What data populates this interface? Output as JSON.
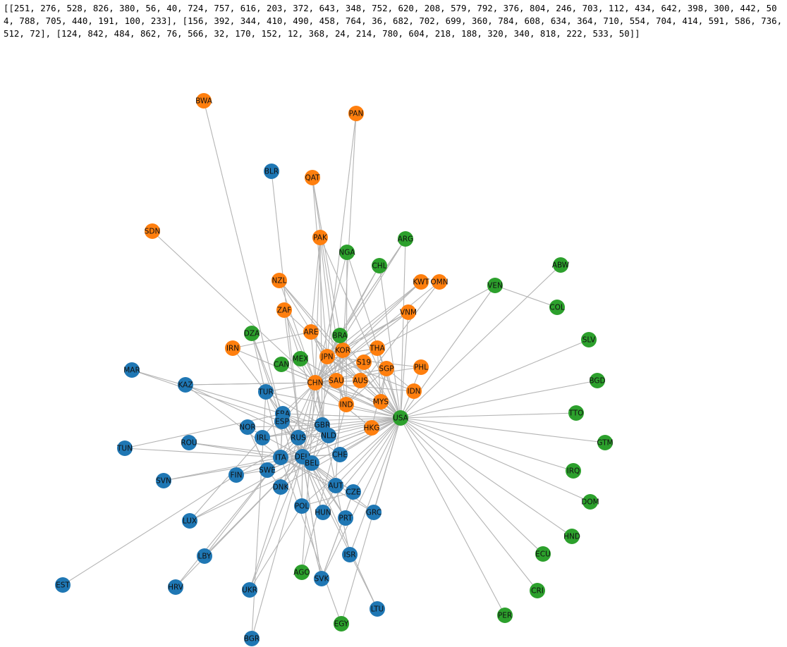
{
  "output": {
    "text": "[[251, 276, 528, 826, 380, 56, 40, 724, 757, 616, 203, 372, 643, 348, 752, 620, 208, 579, 792, 376, 804, 246, 703, 112, 434, 642, 398, 300, 442, 504, 788, 705, 440, 191, 100, 233], [156, 392, 344, 410, 490, 458, 764, 36, 682, 702, 699, 360, 784, 608, 634, 364, 710, 554, 704, 414, 591, 586, 736, 512, 72], [124, 842, 484, 862, 76, 566, 32, 170, 152, 12, 368, 24, 214, 780, 604, 218, 188, 320, 340, 818, 222, 533, 50]]"
  },
  "colors": {
    "blue": "#1f77b4",
    "orange": "#ff7f0e",
    "green": "#2ca02c",
    "edge": "#b4b4b4"
  },
  "graph": {
    "nodes": [
      {
        "id": "BWA",
        "group": "orange"
      },
      {
        "id": "PAN",
        "group": "orange"
      },
      {
        "id": "QAT",
        "group": "orange"
      },
      {
        "id": "SDN",
        "group": "orange"
      },
      {
        "id": "PAK",
        "group": "orange"
      },
      {
        "id": "NZL",
        "group": "orange"
      },
      {
        "id": "KWT",
        "group": "orange"
      },
      {
        "id": "OMN",
        "group": "orange"
      },
      {
        "id": "ZAF",
        "group": "orange"
      },
      {
        "id": "VNM",
        "group": "orange"
      },
      {
        "id": "ARE",
        "group": "orange"
      },
      {
        "id": "IRN",
        "group": "orange"
      },
      {
        "id": "KOR",
        "group": "orange"
      },
      {
        "id": "THA",
        "group": "orange"
      },
      {
        "id": "JPN",
        "group": "orange"
      },
      {
        "id": "S19",
        "group": "orange"
      },
      {
        "id": "SGP",
        "group": "orange"
      },
      {
        "id": "PHL",
        "group": "orange"
      },
      {
        "id": "CHN",
        "group": "orange"
      },
      {
        "id": "SAU",
        "group": "orange"
      },
      {
        "id": "AUS",
        "group": "orange"
      },
      {
        "id": "IDN",
        "group": "orange"
      },
      {
        "id": "MYS",
        "group": "orange"
      },
      {
        "id": "IND",
        "group": "orange"
      },
      {
        "id": "HKG",
        "group": "orange"
      },
      {
        "id": "BLR",
        "group": "blue"
      },
      {
        "id": "MAR",
        "group": "blue"
      },
      {
        "id": "KAZ",
        "group": "blue"
      },
      {
        "id": "TUR",
        "group": "blue"
      },
      {
        "id": "FRA",
        "group": "blue"
      },
      {
        "id": "ESP",
        "group": "blue"
      },
      {
        "id": "NOR",
        "group": "blue"
      },
      {
        "id": "GBR",
        "group": "blue"
      },
      {
        "id": "NLD",
        "group": "blue"
      },
      {
        "id": "IRL",
        "group": "blue"
      },
      {
        "id": "RUS",
        "group": "blue"
      },
      {
        "id": "ROU",
        "group": "blue"
      },
      {
        "id": "TUN",
        "group": "blue"
      },
      {
        "id": "CHE",
        "group": "blue"
      },
      {
        "id": "ITA",
        "group": "blue"
      },
      {
        "id": "DEU",
        "group": "blue"
      },
      {
        "id": "BEL",
        "group": "blue"
      },
      {
        "id": "SWE",
        "group": "blue"
      },
      {
        "id": "FIN",
        "group": "blue"
      },
      {
        "id": "SVN",
        "group": "blue"
      },
      {
        "id": "DNK",
        "group": "blue"
      },
      {
        "id": "AUT",
        "group": "blue"
      },
      {
        "id": "CZE",
        "group": "blue"
      },
      {
        "id": "POL",
        "group": "blue"
      },
      {
        "id": "HUN",
        "group": "blue"
      },
      {
        "id": "PRT",
        "group": "blue"
      },
      {
        "id": "GRC",
        "group": "blue"
      },
      {
        "id": "LUX",
        "group": "blue"
      },
      {
        "id": "LBY",
        "group": "blue"
      },
      {
        "id": "ISR",
        "group": "blue"
      },
      {
        "id": "SVK",
        "group": "blue"
      },
      {
        "id": "EST",
        "group": "blue"
      },
      {
        "id": "HRV",
        "group": "blue"
      },
      {
        "id": "UKR",
        "group": "blue"
      },
      {
        "id": "LTU",
        "group": "blue"
      },
      {
        "id": "BGR",
        "group": "blue"
      },
      {
        "id": "ARG",
        "group": "green"
      },
      {
        "id": "NGA",
        "group": "green"
      },
      {
        "id": "CHL",
        "group": "green"
      },
      {
        "id": "ABW",
        "group": "green"
      },
      {
        "id": "VEN",
        "group": "green"
      },
      {
        "id": "COL",
        "group": "green"
      },
      {
        "id": "DZA",
        "group": "green"
      },
      {
        "id": "BRA",
        "group": "green"
      },
      {
        "id": "SLV",
        "group": "green"
      },
      {
        "id": "MEX",
        "group": "green"
      },
      {
        "id": "CAN",
        "group": "green"
      },
      {
        "id": "BGD",
        "group": "green"
      },
      {
        "id": "USA",
        "group": "green"
      },
      {
        "id": "TTO",
        "group": "green"
      },
      {
        "id": "GTM",
        "group": "green"
      },
      {
        "id": "IRQ",
        "group": "green"
      },
      {
        "id": "DOM",
        "group": "green"
      },
      {
        "id": "HND",
        "group": "green"
      },
      {
        "id": "ECU",
        "group": "green"
      },
      {
        "id": "AGO",
        "group": "green"
      },
      {
        "id": "CRI",
        "group": "green"
      },
      {
        "id": "PER",
        "group": "green"
      },
      {
        "id": "EGY",
        "group": "green"
      }
    ],
    "edges": [
      [
        "BWA",
        "SVK"
      ],
      [
        "PAN",
        "AUT"
      ],
      [
        "PAN",
        "JPN"
      ],
      [
        "QAT",
        "JPN"
      ],
      [
        "QAT",
        "KOR"
      ],
      [
        "QAT",
        "IND"
      ],
      [
        "SDN",
        "CHN"
      ],
      [
        "PAK",
        "CHN"
      ],
      [
        "PAK",
        "USA"
      ],
      [
        "PAK",
        "ARE"
      ],
      [
        "PAK",
        "SAU"
      ],
      [
        "PAK",
        "GBR"
      ],
      [
        "BLR",
        "DEU"
      ],
      [
        "NZL",
        "AUS"
      ],
      [
        "NZL",
        "CHN"
      ],
      [
        "NZL",
        "USA"
      ],
      [
        "NZL",
        "JPN"
      ],
      [
        "NGA",
        "USA"
      ],
      [
        "NGA",
        "IND"
      ],
      [
        "NGA",
        "CHN"
      ],
      [
        "ARG",
        "BRA"
      ],
      [
        "ARG",
        "CHN"
      ],
      [
        "ARG",
        "USA"
      ],
      [
        "CHL",
        "CHN"
      ],
      [
        "CHL",
        "USA"
      ],
      [
        "CHL",
        "JPN"
      ],
      [
        "KWT",
        "KOR"
      ],
      [
        "KWT",
        "CHN"
      ],
      [
        "KWT",
        "JPN"
      ],
      [
        "OMN",
        "CHN"
      ],
      [
        "OMN",
        "IND"
      ],
      [
        "ZAF",
        "CHN"
      ],
      [
        "ZAF",
        "USA"
      ],
      [
        "ZAF",
        "DEU"
      ],
      [
        "ZAF",
        "GBR"
      ],
      [
        "VNM",
        "USA"
      ],
      [
        "VNM",
        "CHN"
      ],
      [
        "VNM",
        "KOR"
      ],
      [
        "VNM",
        "JPN"
      ],
      [
        "VEN",
        "USA"
      ],
      [
        "VEN",
        "CHN"
      ],
      [
        "COL",
        "VEN"
      ],
      [
        "ABW",
        "USA"
      ],
      [
        "ARE",
        "IND"
      ],
      [
        "ARE",
        "CHN"
      ],
      [
        "ARE",
        "JPN"
      ],
      [
        "IRN",
        "CHN"
      ],
      [
        "IRN",
        "ARE"
      ],
      [
        "IRN",
        "TUR"
      ],
      [
        "DZA",
        "FRA"
      ],
      [
        "DZA",
        "ESP"
      ],
      [
        "DZA",
        "ITA"
      ],
      [
        "BRA",
        "CHN"
      ],
      [
        "BRA",
        "USA"
      ],
      [
        "BRA",
        "ARG"
      ],
      [
        "MAR",
        "ESP"
      ],
      [
        "MAR",
        "FRA"
      ],
      [
        "KAZ",
        "CHN"
      ],
      [
        "KAZ",
        "RUS"
      ],
      [
        "KAZ",
        "ITA"
      ],
      [
        "CAN",
        "USA"
      ],
      [
        "MEX",
        "USA"
      ],
      [
        "MEX",
        "CHN"
      ],
      [
        "JPN",
        "CHN"
      ],
      [
        "JPN",
        "USA"
      ],
      [
        "JPN",
        "KOR"
      ],
      [
        "KOR",
        "CHN"
      ],
      [
        "KOR",
        "USA"
      ],
      [
        "THA",
        "CHN"
      ],
      [
        "THA",
        "JPN"
      ],
      [
        "THA",
        "USA"
      ],
      [
        "S19",
        "CHN"
      ],
      [
        "S19",
        "USA"
      ],
      [
        "SGP",
        "CHN"
      ],
      [
        "SGP",
        "MYS"
      ],
      [
        "SGP",
        "HKG"
      ],
      [
        "PHL",
        "JPN"
      ],
      [
        "PHL",
        "USA"
      ],
      [
        "PHL",
        "CHN"
      ],
      [
        "CHN",
        "USA"
      ],
      [
        "CHN",
        "HKG"
      ],
      [
        "CHN",
        "DEU"
      ],
      [
        "CHN",
        "AUS"
      ],
      [
        "SAU",
        "CHN"
      ],
      [
        "SAU",
        "USA"
      ],
      [
        "SAU",
        "IND"
      ],
      [
        "AUS",
        "CHN"
      ],
      [
        "AUS",
        "JPN"
      ],
      [
        "IDN",
        "CHN"
      ],
      [
        "IDN",
        "JPN"
      ],
      [
        "MYS",
        "CHN"
      ],
      [
        "MYS",
        "SGP"
      ],
      [
        "IND",
        "USA"
      ],
      [
        "IND",
        "CHN"
      ],
      [
        "HKG",
        "CHN"
      ],
      [
        "TUR",
        "DEU"
      ],
      [
        "TUR",
        "GBR"
      ],
      [
        "TUR",
        "RUS"
      ],
      [
        "FRA",
        "DEU"
      ],
      [
        "FRA",
        "ESP"
      ],
      [
        "FRA",
        "ITA"
      ],
      [
        "FRA",
        "BEL"
      ],
      [
        "FRA",
        "USA"
      ],
      [
        "ESP",
        "FRA"
      ],
      [
        "ESP",
        "DEU"
      ],
      [
        "ESP",
        "PRT"
      ],
      [
        "NOR",
        "GBR"
      ],
      [
        "NOR",
        "DEU"
      ],
      [
        "NOR",
        "SWE"
      ],
      [
        "GBR",
        "USA"
      ],
      [
        "GBR",
        "DEU"
      ],
      [
        "NLD",
        "DEU"
      ],
      [
        "NLD",
        "BEL"
      ],
      [
        "IRL",
        "USA"
      ],
      [
        "IRL",
        "GBR"
      ],
      [
        "RUS",
        "CHN"
      ],
      [
        "RUS",
        "DEU"
      ],
      [
        "RUS",
        "NLD"
      ],
      [
        "ROU",
        "DEU"
      ],
      [
        "ROU",
        "ITA"
      ],
      [
        "TUN",
        "FRA"
      ],
      [
        "TUN",
        "ITA"
      ],
      [
        "CHE",
        "DEU"
      ],
      [
        "CHE",
        "USA"
      ],
      [
        "ITA",
        "DEU"
      ],
      [
        "ITA",
        "FRA"
      ],
      [
        "DEU",
        "USA"
      ],
      [
        "DEU",
        "CHN"
      ],
      [
        "BEL",
        "DEU"
      ],
      [
        "BEL",
        "FRA"
      ],
      [
        "SWE",
        "DEU"
      ],
      [
        "SWE",
        "NOR"
      ],
      [
        "FIN",
        "DEU"
      ],
      [
        "FIN",
        "SWE"
      ],
      [
        "FIN",
        "RUS"
      ],
      [
        "SVN",
        "DEU"
      ],
      [
        "SVN",
        "ITA"
      ],
      [
        "DNK",
        "DEU"
      ],
      [
        "DNK",
        "SWE"
      ],
      [
        "AUT",
        "DEU"
      ],
      [
        "AUT",
        "ITA"
      ],
      [
        "CZE",
        "DEU"
      ],
      [
        "CZE",
        "SVK"
      ],
      [
        "POL",
        "DEU"
      ],
      [
        "POL",
        "CZE"
      ],
      [
        "HUN",
        "DEU"
      ],
      [
        "HUN",
        "AUT"
      ],
      [
        "PRT",
        "ESP"
      ],
      [
        "PRT",
        "FRA"
      ],
      [
        "GRC",
        "ITA"
      ],
      [
        "GRC",
        "DEU"
      ],
      [
        "LUX",
        "DEU"
      ],
      [
        "LUX",
        "FRA"
      ],
      [
        "LUX",
        "BEL"
      ],
      [
        "LBY",
        "ITA"
      ],
      [
        "LBY",
        "DEU"
      ],
      [
        "ISR",
        "USA"
      ],
      [
        "ISR",
        "CHN"
      ],
      [
        "SVK",
        "DEU"
      ],
      [
        "SVK",
        "CZE"
      ],
      [
        "EST",
        "FIN"
      ],
      [
        "HRV",
        "ITA"
      ],
      [
        "HRV",
        "DEU"
      ],
      [
        "UKR",
        "RUS"
      ],
      [
        "UKR",
        "POL"
      ],
      [
        "UKR",
        "DEU"
      ],
      [
        "LTU",
        "RUS"
      ],
      [
        "LTU",
        "DEU"
      ],
      [
        "BGR",
        "DEU"
      ],
      [
        "BGR",
        "TUR"
      ],
      [
        "AGO",
        "CHN"
      ],
      [
        "AGO",
        "IND"
      ],
      [
        "EGY",
        "ITA"
      ],
      [
        "EGY",
        "USA"
      ],
      [
        "USA",
        "SLV"
      ],
      [
        "USA",
        "BGD"
      ],
      [
        "USA",
        "TTO"
      ],
      [
        "USA",
        "GTM"
      ],
      [
        "USA",
        "IRQ"
      ],
      [
        "USA",
        "DOM"
      ],
      [
        "USA",
        "HND"
      ],
      [
        "USA",
        "ECU"
      ],
      [
        "USA",
        "CRI"
      ],
      [
        "USA",
        "PER"
      ],
      [
        "USA",
        "CAN"
      ],
      [
        "USA",
        "MEX"
      ],
      [
        "USA",
        "NLD"
      ],
      [
        "USA",
        "JPN"
      ],
      [
        "USA",
        "KOR"
      ],
      [
        "USA",
        "ITA"
      ],
      [
        "USA",
        "FRA"
      ],
      [
        "USA",
        "SGP"
      ],
      [
        "USA",
        "GRC"
      ],
      [
        "USA",
        "SVK"
      ],
      [
        "USA",
        "CZE"
      ],
      [
        "USA",
        "HUN"
      ],
      [
        "USA",
        "POL"
      ],
      [
        "USA",
        "DNK"
      ],
      [
        "USA",
        "AUT"
      ],
      [
        "USA",
        "SWE"
      ],
      [
        "USA",
        "BEL"
      ],
      [
        "USA",
        "ESP"
      ],
      [
        "USA",
        "RUS"
      ],
      [
        "USA",
        "TUR"
      ],
      [
        "CHN",
        "FRA"
      ],
      [
        "CHN",
        "ITA"
      ],
      [
        "CHN",
        "GBR"
      ],
      [
        "CHN",
        "NLD"
      ],
      [
        "CHN",
        "ESP"
      ],
      [
        "CHN",
        "KAZ"
      ],
      [
        "CHN",
        "TUR"
      ],
      [
        "CHN",
        "SGP"
      ],
      [
        "JPN",
        "DEU"
      ],
      [
        "JPN",
        "GBR"
      ],
      [
        "KOR",
        "DEU"
      ],
      [
        "GBR",
        "FRA"
      ],
      [
        "GBR",
        "NLD"
      ],
      [
        "GBR",
        "ESP"
      ],
      [
        "GBR",
        "ITA"
      ],
      [
        "GBR",
        "BEL"
      ],
      [
        "GBR",
        "IRL"
      ],
      [
        "NLD",
        "FRA"
      ],
      [
        "NLD",
        "ITA"
      ],
      [
        "RUS",
        "ITA"
      ],
      [
        "RUS",
        "FRA"
      ],
      [
        "RUS",
        "TUR"
      ],
      [
        "DEU",
        "POL"
      ],
      [
        "DEU",
        "CZE"
      ],
      [
        "DEU",
        "HUN"
      ],
      [
        "DEU",
        "AUT"
      ],
      [
        "DEU",
        "SVK"
      ],
      [
        "DEU",
        "SWE"
      ],
      [
        "DEU",
        "DNK"
      ],
      [
        "ITA",
        "ESP"
      ],
      [
        "ITA",
        "CHE"
      ],
      [
        "FRA",
        "CHE"
      ],
      [
        "CHE",
        "ITA"
      ],
      [
        "AUS",
        "USA"
      ],
      [
        "IND",
        "ARE"
      ],
      [
        "SAU",
        "JPN"
      ],
      [
        "SAU",
        "KOR"
      ],
      [
        "THA",
        "MYS"
      ],
      [
        "IDN",
        "SGP"
      ],
      [
        "HKG",
        "USA"
      ],
      [
        "MYS",
        "USA"
      ],
      [
        "IND",
        "SGP"
      ]
    ]
  }
}
